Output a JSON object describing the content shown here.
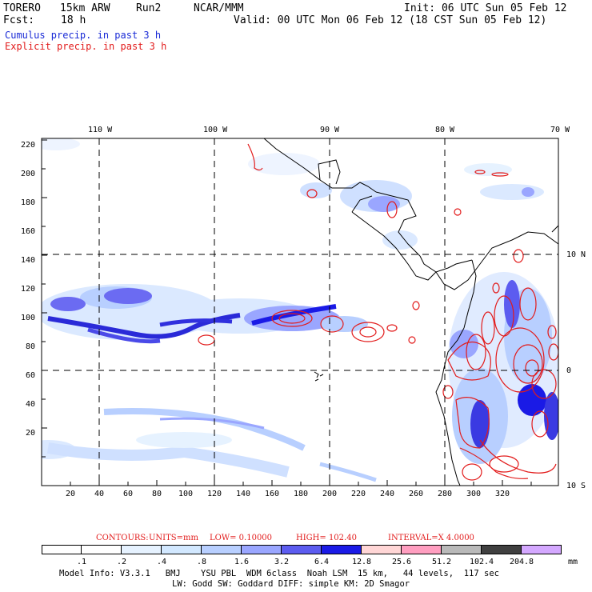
{
  "header": {
    "model": "TORERO",
    "resolution": "15km ARW",
    "run": "Run2",
    "org": "NCAR/MMM",
    "init": "Init: 06 UTC Sun 05 Feb 12",
    "fcst_label": "Fcst:",
    "fcst_value": "18 h",
    "valid": "Valid: 00 UTC Mon 06 Feb 12 (18 CST Sun 05 Feb 12)"
  },
  "fields": {
    "cumulus": "Cumulus precip. in past 3 h",
    "explicit": "Explicit precip. in past 3 h",
    "cumulus_color": "#1a2bd6",
    "explicit_color": "#e21b1b"
  },
  "axes": {
    "lon_labels": [
      "110 W",
      "100 W",
      "90 W",
      "80 W",
      "70 W"
    ],
    "lat_labels": [
      "10 N",
      "0",
      "10 S"
    ],
    "x_ticks": [
      "20",
      "40",
      "60",
      "80",
      "100",
      "120",
      "140",
      "160",
      "180",
      "200",
      "220",
      "240",
      "260",
      "280",
      "300",
      "320"
    ],
    "y_ticks": [
      "220",
      "200",
      "180",
      "160",
      "140",
      "120",
      "100",
      "80",
      "60",
      "40",
      "20"
    ]
  },
  "contour_info": {
    "label": "CONTOURS:",
    "units": "UNITS=mm",
    "low": "LOW= 0.10000",
    "high": "HIGH= 102.40",
    "interval": "INTERVAL=X 4.0000"
  },
  "legend": {
    "labels": [
      ".1",
      ".2",
      ".4",
      ".8",
      "1.6",
      "3.2",
      "6.4",
      "12.8",
      "25.6",
      "51.2",
      "102.4",
      "204.8"
    ],
    "units": "mm",
    "colors": [
      "#ffffff",
      "#ffffff",
      "#e6f2ff",
      "#d2e8ff",
      "#b8cfff",
      "#9aa6ff",
      "#5c5cf0",
      "#1a1ae6",
      "#ffd6d6",
      "#ff9ec0",
      "#b9b9b9",
      "#404040",
      "#d4a8ff"
    ]
  },
  "footer": {
    "line1": "Model Info: V3.3.1   BMJ    YSU PBL  WDM 6class  Noah LSM  15 km,   44 levels,  117 sec",
    "line2": "LW: Godd SW: Goddard DIFF: simple KM: 2D Smagor"
  }
}
